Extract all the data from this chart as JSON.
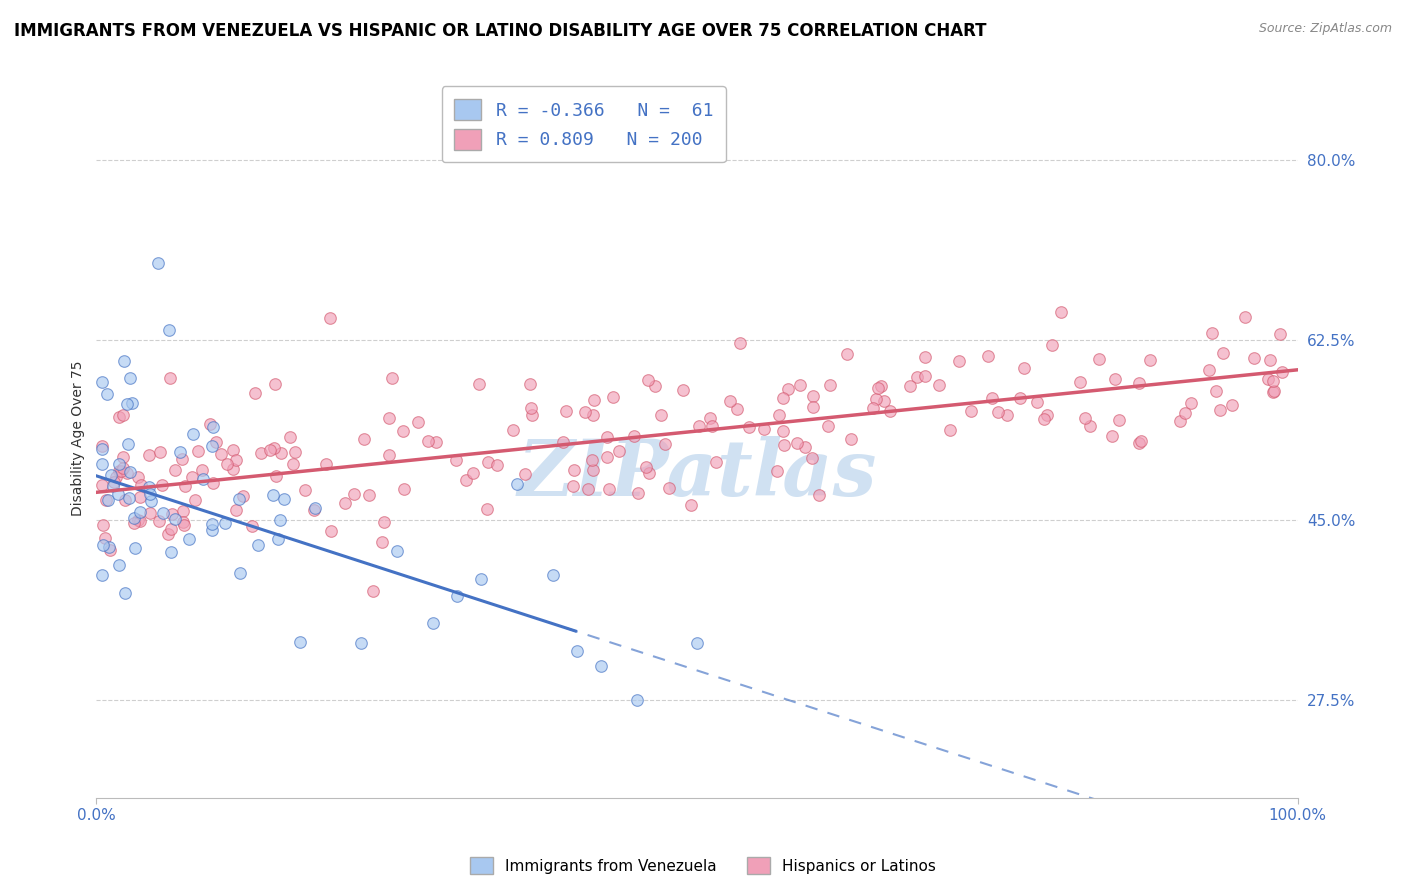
{
  "title": "IMMIGRANTS FROM VENEZUELA VS HISPANIC OR LATINO DISABILITY AGE OVER 75 CORRELATION CHART",
  "source": "Source: ZipAtlas.com",
  "ylabel": "Disability Age Over 75",
  "legend_1_label": "Immigrants from Venezuela",
  "legend_2_label": "Hispanics or Latinos",
  "r1": -0.366,
  "n1": 61,
  "r2": 0.809,
  "n2": 200,
  "xlim": [
    0.0,
    1.0
  ],
  "ylim": [
    0.18,
    0.88
  ],
  "yticks": [
    0.275,
    0.45,
    0.625,
    0.8
  ],
  "ytick_labels": [
    "27.5%",
    "45.0%",
    "62.5%",
    "80.0%"
  ],
  "xticks": [
    0.0,
    1.0
  ],
  "xtick_labels": [
    "0.0%",
    "100.0%"
  ],
  "color_blue": "#A8C8F0",
  "color_pink": "#F0A0B8",
  "color_blue_line": "#4472C4",
  "color_pink_line": "#D45A70",
  "watermark_color": "#C8DCF0",
  "title_fontsize": 12,
  "axis_label_fontsize": 10,
  "tick_fontsize": 11,
  "legend_fontsize": 13,
  "blue_line_start_x": 0.0,
  "blue_line_start_y": 0.493,
  "blue_line_end_x": 1.0,
  "blue_line_end_y": 0.115,
  "blue_line_solid_end_x": 0.4,
  "pink_line_start_x": 0.0,
  "pink_line_start_y": 0.477,
  "pink_line_end_x": 1.0,
  "pink_line_end_y": 0.596
}
